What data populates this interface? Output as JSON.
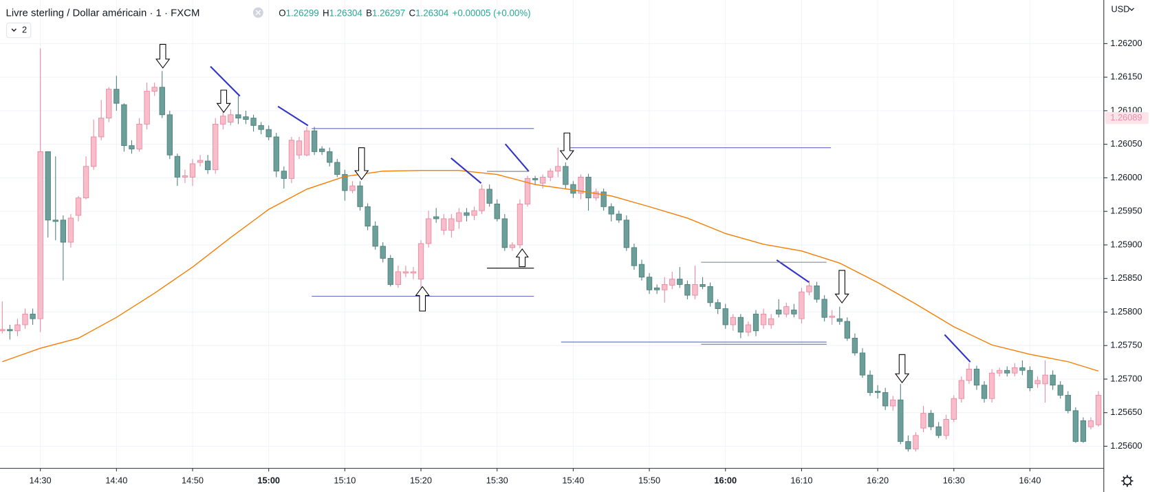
{
  "chart_data": {
    "type": "candlestick",
    "title": "Livre sterling / Dollar américain · 1 · FXCM",
    "ohlc_legend": [
      {
        "label": "O",
        "value": 1.26299
      },
      {
        "label": "H",
        "value": 1.26304
      },
      {
        "label": "B",
        "value": 1.26297
      },
      {
        "label": "C",
        "value": 1.26304
      }
    ],
    "change": "+0.00005 (+0.00%)",
    "currency": "USD",
    "indicators_badge": "2",
    "last_price": 1.26089,
    "up_color": "#f9bccb",
    "down_color": "#6c9e9a",
    "x": [
      "14:25",
      "14:26",
      "14:27",
      "14:28",
      "14:29",
      "14:30",
      "14:31",
      "14:32",
      "14:33",
      "14:34",
      "14:35",
      "14:36",
      "14:37",
      "14:38",
      "14:39",
      "14:40",
      "14:41",
      "14:42",
      "14:43",
      "14:44",
      "14:45",
      "14:46",
      "14:47",
      "14:48",
      "14:49",
      "14:50",
      "14:51",
      "14:52",
      "14:53",
      "14:54",
      "14:55",
      "14:56",
      "14:57",
      "14:58",
      "14:59",
      "15:00",
      "15:01",
      "15:02",
      "15:03",
      "15:04",
      "15:05",
      "15:06",
      "15:07",
      "15:08",
      "15:09",
      "15:10",
      "15:11",
      "15:12",
      "15:13",
      "15:14",
      "15:15",
      "15:16",
      "15:17",
      "15:18",
      "15:19",
      "15:20",
      "15:21",
      "15:22",
      "15:23",
      "15:24",
      "15:25",
      "15:26",
      "15:27",
      "15:28",
      "15:29",
      "15:30",
      "15:31",
      "15:32",
      "15:33",
      "15:34",
      "15:35",
      "15:36",
      "15:37",
      "15:38",
      "15:39",
      "15:40",
      "15:41",
      "15:42",
      "15:43",
      "15:44",
      "15:45",
      "15:46",
      "15:47",
      "15:48",
      "15:49",
      "15:50",
      "15:51",
      "15:52",
      "15:53",
      "15:54",
      "15:55",
      "15:56",
      "15:57",
      "15:58",
      "15:59",
      "16:00",
      "16:01",
      "16:02",
      "16:03",
      "16:04",
      "16:05",
      "16:06",
      "16:07",
      "16:08",
      "16:09",
      "16:10",
      "16:11",
      "16:12",
      "16:13",
      "16:14",
      "16:15",
      "16:16",
      "16:17",
      "16:18",
      "16:19",
      "16:20",
      "16:21",
      "16:22",
      "16:23",
      "16:24",
      "16:25",
      "16:26",
      "16:27",
      "16:28",
      "16:29",
      "16:30",
      "16:31",
      "16:32",
      "16:33",
      "16:34",
      "16:35",
      "16:36",
      "16:37",
      "16:38",
      "16:39",
      "16:40",
      "16:41",
      "16:42",
      "16:43",
      "16:44",
      "16:45",
      "16:46",
      "16:47",
      "16:48",
      "16:49"
    ],
    "open": [
      1.25772,
      1.25774,
      1.25772,
      1.25781,
      1.25797,
      1.2579,
      1.26039,
      1.25937,
      1.25937,
      1.25904,
      1.25944,
      1.2597,
      1.26017,
      1.26061,
      1.26089,
      1.26132,
      1.26109,
      1.26048,
      1.26043,
      1.2608,
      1.26129,
      1.26135,
      1.26094,
      1.26032,
      1.26001,
      1.26001,
      1.26023,
      1.26025,
      1.26012,
      1.2608,
      1.26083,
      1.26094,
      1.26091,
      1.26089,
      1.26078,
      1.26072,
      1.26061,
      1.2601,
      1.25999,
      1.26034,
      1.26034,
      1.2607,
      1.26043,
      1.26039,
      1.26023,
      1.26005,
      1.25981,
      1.25988,
      1.25957,
      1.25928,
      1.25898,
      1.2588,
      1.25841,
      1.25858,
      1.25858,
      1.25849,
      1.25902,
      1.25942,
      1.25922,
      1.25922,
      1.25935,
      1.25948,
      1.25944,
      1.25951,
      1.25983,
      1.25961,
      1.25939,
      1.25896,
      1.259,
      1.25961,
      1.25999,
      1.25992,
      1.26001,
      1.2601,
      1.26017,
      1.2599,
      1.25977,
      1.26001,
      1.2597,
      1.25979,
      1.25957,
      1.25946,
      1.25937,
      1.25896,
      1.25871,
      1.25852,
      1.25836,
      1.25833,
      1.2584,
      1.25849,
      1.25841,
      1.25825,
      1.25841,
      1.25838,
      1.25814,
      1.25805,
      1.25781,
      1.25792,
      1.2577,
      1.25797,
      1.25781,
      1.25781,
      1.25803,
      1.25797,
      1.25803,
      1.2579,
      1.2583,
      1.25839,
      1.25819,
      1.25792,
      1.2579,
      1.25786,
      1.25761,
      1.25739,
      1.25706,
      1.25682,
      1.2568,
      1.2566,
      1.25669,
      1.25607,
      1.25596,
      1.25627,
      1.25649,
      1.25629,
      1.25616,
      1.2564,
      1.25671,
      1.25698,
      1.25715,
      1.25691,
      1.25671,
      1.25709,
      1.25713,
      1.25709,
      1.25717,
      1.25713,
      1.25693,
      1.25693,
      1.25706,
      1.25691,
      1.25676,
      1.25653,
      1.25638,
      1.25629,
      1.25632
    ],
    "high": [
      1.25816,
      1.25781,
      1.2579,
      1.25805,
      1.25805,
      1.26193,
      1.26039,
      1.26032,
      1.25944,
      1.25946,
      1.25973,
      1.26032,
      1.26087,
      1.26116,
      1.26135,
      1.26152,
      1.26111,
      1.26056,
      1.26089,
      1.26142,
      1.26142,
      1.26159,
      1.261,
      1.26036,
      1.26012,
      1.26028,
      1.26034,
      1.26034,
      1.26089,
      1.261,
      1.26102,
      1.26122,
      1.261,
      1.26094,
      1.26083,
      1.26078,
      1.26067,
      1.26017,
      1.26061,
      1.26061,
      1.26076,
      1.26076,
      1.26047,
      1.26045,
      1.26028,
      1.26012,
      1.25995,
      1.25995,
      1.25962,
      1.25935,
      1.25904,
      1.25885,
      1.25869,
      1.25869,
      1.25867,
      1.25907,
      1.25951,
      1.25955,
      1.25946,
      1.25946,
      1.25955,
      1.25955,
      1.25957,
      1.2599,
      1.2599,
      1.25968,
      1.25946,
      1.25904,
      1.25968,
      1.26003,
      1.26003,
      1.26005,
      1.26014,
      1.26045,
      1.26023,
      1.25995,
      1.26005,
      1.26006,
      1.25984,
      1.25984,
      1.25962,
      1.25951,
      1.25944,
      1.25902,
      1.25878,
      1.25858,
      1.25841,
      1.25852,
      1.2586,
      1.25867,
      1.25847,
      1.25869,
      1.25852,
      1.25844,
      1.25819,
      1.25812,
      1.25797,
      1.25797,
      1.25786,
      1.25803,
      1.25805,
      1.25797,
      1.25819,
      1.25814,
      1.25812,
      1.25836,
      1.25847,
      1.25845,
      1.25825,
      1.25803,
      1.25808,
      1.25792,
      1.25768,
      1.25746,
      1.25713,
      1.25691,
      1.25687,
      1.25675,
      1.25693,
      1.25616,
      1.25621,
      1.2566,
      1.25654,
      1.25636,
      1.25647,
      1.25676,
      1.25704,
      1.25724,
      1.2572,
      1.25697,
      1.25715,
      1.25717,
      1.25719,
      1.25724,
      1.25728,
      1.25719,
      1.25704,
      1.25728,
      1.25713,
      1.25697,
      1.25682,
      1.25658,
      1.25643,
      1.25643,
      1.25682
    ],
    "low": [
      1.25768,
      1.25759,
      1.25764,
      1.25775,
      1.25781,
      1.2577,
      1.25911,
      1.25907,
      1.25847,
      1.25896,
      1.25935,
      1.25968,
      1.26012,
      1.26056,
      1.26083,
      1.261,
      1.26039,
      1.26036,
      1.26039,
      1.26072,
      1.26122,
      1.26089,
      1.26028,
      1.25988,
      1.25992,
      1.25988,
      1.26017,
      1.26006,
      1.26006,
      1.26072,
      1.26078,
      1.2608,
      1.2608,
      1.26069,
      1.26065,
      1.26056,
      1.26001,
      1.25984,
      1.25992,
      1.26028,
      1.26032,
      1.26034,
      1.26034,
      1.26017,
      1.26001,
      1.25966,
      1.25977,
      1.25951,
      1.25922,
      1.25893,
      1.25874,
      1.25838,
      1.25836,
      1.25852,
      1.25849,
      1.25836,
      1.25896,
      1.25933,
      1.25915,
      1.25911,
      1.25924,
      1.25935,
      1.25937,
      1.25946,
      1.25957,
      1.25935,
      1.25891,
      1.25891,
      1.25895,
      1.25957,
      1.2599,
      1.25984,
      1.25995,
      1.26001,
      1.25984,
      1.2597,
      1.25968,
      1.25951,
      1.25966,
      1.25951,
      1.25935,
      1.25933,
      1.25891,
      1.25863,
      1.25847,
      1.25827,
      1.25827,
      1.25814,
      1.25834,
      1.25836,
      1.25819,
      1.25819,
      1.25834,
      1.25808,
      1.25797,
      1.25775,
      1.25772,
      1.25761,
      1.25764,
      1.25764,
      1.25775,
      1.25775,
      1.25792,
      1.25792,
      1.25792,
      1.25783,
      1.25825,
      1.25814,
      1.25786,
      1.25781,
      1.25781,
      1.25757,
      1.25735,
      1.25702,
      1.25675,
      1.25671,
      1.25654,
      1.25653,
      1.25603,
      1.25592,
      1.25592,
      1.25621,
      1.25624,
      1.25612,
      1.2561,
      1.25636,
      1.25665,
      1.25693,
      1.25684,
      1.25665,
      1.25665,
      1.25704,
      1.25704,
      1.25704,
      1.25706,
      1.25682,
      1.25687,
      1.25665,
      1.25684,
      1.25671,
      1.25649,
      1.25605,
      1.25605,
      1.25625,
      1.25629
    ],
    "close": [
      1.25774,
      1.25772,
      1.25781,
      1.25797,
      1.2579,
      1.26039,
      1.25937,
      1.25935,
      1.25904,
      1.2594,
      1.2597,
      1.26017,
      1.26061,
      1.26089,
      1.26132,
      1.26111,
      1.26048,
      1.26043,
      1.2608,
      1.26129,
      1.26135,
      1.26094,
      1.26034,
      1.26001,
      1.26003,
      1.26021,
      1.26026,
      1.26012,
      1.2608,
      1.26092,
      1.26094,
      1.26089,
      1.26087,
      1.26078,
      1.26072,
      1.26061,
      1.2601,
      1.25999,
      1.26056,
      1.26055,
      1.2607,
      1.26039,
      1.26039,
      1.26023,
      1.26005,
      1.25981,
      1.25988,
      1.25957,
      1.25928,
      1.25898,
      1.2588,
      1.25841,
      1.2586,
      1.2586,
      1.2586,
      1.25902,
      1.25939,
      1.25939,
      1.25939,
      1.25939,
      1.25948,
      1.25944,
      1.25951,
      1.25983,
      1.25962,
      1.25939,
      1.25896,
      1.259,
      1.25961,
      1.25999,
      1.25997,
      1.26001,
      1.2601,
      1.26017,
      1.2599,
      1.25977,
      1.26001,
      1.2597,
      1.25979,
      1.25957,
      1.25946,
      1.25937,
      1.25896,
      1.25869,
      1.25852,
      1.25833,
      1.25833,
      1.25841,
      1.25849,
      1.25841,
      1.25825,
      1.25841,
      1.25838,
      1.25814,
      1.25805,
      1.25781,
      1.25792,
      1.2577,
      1.25781,
      1.25772,
      1.25797,
      1.2579,
      1.25797,
      1.25808,
      1.25797,
      1.2583,
      1.25839,
      1.25819,
      1.25792,
      1.25794,
      1.25786,
      1.25761,
      1.25739,
      1.25706,
      1.2568,
      1.2568,
      1.2566,
      1.25669,
      1.25607,
      1.25596,
      1.25616,
      1.25649,
      1.25629,
      1.25616,
      1.2564,
      1.25671,
      1.25698,
      1.25715,
      1.25691,
      1.25671,
      1.25709,
      1.25713,
      1.25709,
      1.25717,
      1.25713,
      1.25687,
      1.25698,
      1.25706,
      1.25691,
      1.25676,
      1.25653,
      1.25607,
      1.25607,
      1.25638,
      1.25676
    ],
    "ma": {
      "color": "#f57c00",
      "x": [
        "14:25",
        "14:30",
        "14:35",
        "14:40",
        "14:45",
        "14:50",
        "14:55",
        "15:00",
        "15:05",
        "15:10",
        "15:15",
        "15:20",
        "15:25",
        "15:30",
        "15:35",
        "15:40",
        "15:45",
        "15:50",
        "15:55",
        "16:00",
        "16:05",
        "16:10",
        "16:15",
        "16:20",
        "16:25",
        "16:30",
        "16:35",
        "16:40",
        "16:45",
        "16:49"
      ],
      "values": [
        1.25726,
        1.25746,
        1.25761,
        1.25792,
        1.25828,
        1.25867,
        1.25911,
        1.25953,
        1.25983,
        1.26002,
        1.2601,
        1.26011,
        1.26011,
        1.26005,
        1.2599,
        1.25982,
        1.25973,
        1.25957,
        1.2594,
        1.25917,
        1.25901,
        1.25891,
        1.25873,
        1.25844,
        1.25812,
        1.25778,
        1.25751,
        1.25737,
        1.25726,
        1.25712
      ]
    },
    "ylim": [
      1.25567,
      1.26265
    ],
    "yticks": [
      {
        "value": 1.262,
        "label": "1.26200"
      },
      {
        "value": 1.2615,
        "label": "1.26150"
      },
      {
        "value": 1.261,
        "label": "1.26100"
      },
      {
        "value": 1.2605,
        "label": "1.26050"
      },
      {
        "value": 1.26,
        "label": "1.26000"
      },
      {
        "value": 1.2595,
        "label": "1.25950"
      },
      {
        "value": 1.259,
        "label": "1.25900"
      },
      {
        "value": 1.2585,
        "label": "1.25850"
      },
      {
        "value": 1.258,
        "label": "1.25800"
      },
      {
        "value": 1.2575,
        "label": "1.25750"
      },
      {
        "value": 1.257,
        "label": "1.25700"
      },
      {
        "value": 1.2565,
        "label": "1.25650"
      },
      {
        "value": 1.256,
        "label": "1.25600"
      }
    ],
    "xticks": [
      "14:30",
      "14:40",
      "14:50",
      "15:00",
      "15:10",
      "15:20",
      "15:30",
      "15:40",
      "15:50",
      "16:00",
      "16:10",
      "16:20",
      "16:30",
      "16:40"
    ],
    "grid": true
  }
}
